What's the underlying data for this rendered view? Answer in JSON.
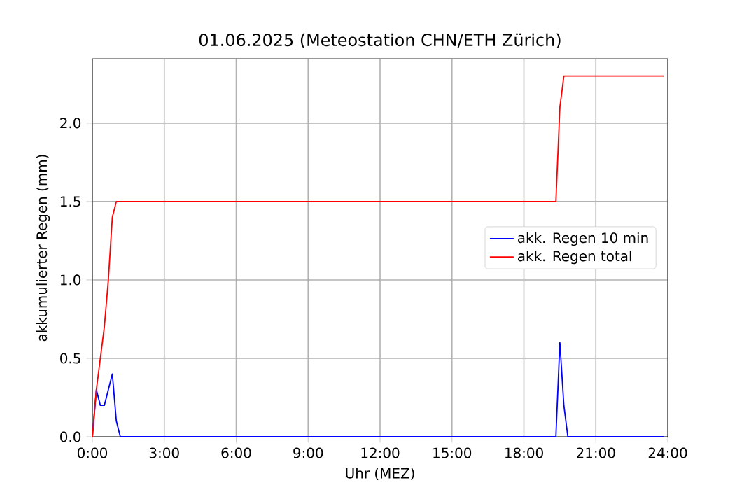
{
  "chart_data": {
    "type": "line",
    "title": "01.06.2025  (Meteostation CHN/ETH Zürich)",
    "xlabel": "Uhr (MEZ)",
    "ylabel": "akkumulierter Regen (mm)",
    "series": [
      {
        "name": "akk. Regen 10 min",
        "color": "#0000ff",
        "x": [
          0,
          0.1667,
          0.3333,
          0.5,
          0.6667,
          0.8333,
          1.0,
          1.1667,
          19.3333,
          19.5,
          19.6667,
          19.8333,
          23.8333
        ],
        "values": [
          0,
          0.3,
          0.2,
          0.2,
          0.3,
          0.4,
          0.1,
          0,
          0,
          0.6,
          0.2,
          0,
          0
        ]
      },
      {
        "name": "akk. Regen total",
        "color": "#ff0000",
        "x": [
          0,
          0.1667,
          0.3333,
          0.5,
          0.6667,
          0.8333,
          1.0,
          19.3333,
          19.5,
          19.6667,
          23.8333
        ],
        "values": [
          0,
          0.3,
          0.5,
          0.7,
          1.0,
          1.4,
          1.5,
          1.5,
          2.1,
          2.3,
          2.3
        ]
      }
    ],
    "xlim": [
      0,
      24
    ],
    "ylim": [
      0,
      2.41
    ],
    "xticks": [
      {
        "value": 0,
        "label": "0:00"
      },
      {
        "value": 3,
        "label": "3:00"
      },
      {
        "value": 6,
        "label": "6:00"
      },
      {
        "value": 9,
        "label": "9:00"
      },
      {
        "value": 12,
        "label": "12:00"
      },
      {
        "value": 15,
        "label": "15:00"
      },
      {
        "value": 18,
        "label": "18:00"
      },
      {
        "value": 21,
        "label": "21:00"
      },
      {
        "value": 24,
        "label": "24:00"
      }
    ],
    "yticks": [
      {
        "value": 0,
        "label": "0.0"
      },
      {
        "value": 0.5,
        "label": "0.5"
      },
      {
        "value": 1,
        "label": "1.0"
      },
      {
        "value": 1.5,
        "label": "1.5"
      },
      {
        "value": 2,
        "label": "2.0"
      }
    ],
    "grid": true,
    "legend": "right",
    "marker": "none",
    "line_style": "solid"
  }
}
